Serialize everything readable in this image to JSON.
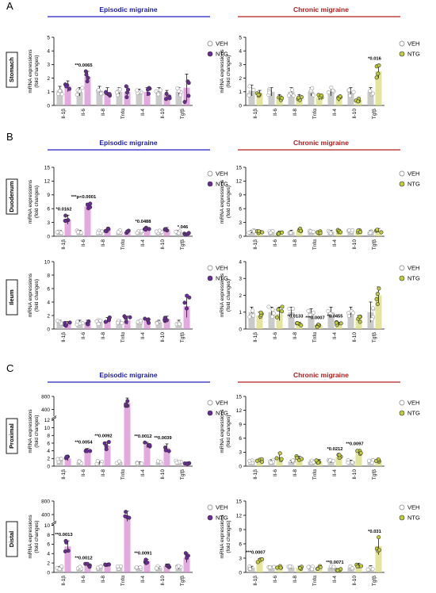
{
  "panels": [
    {
      "letter": "A",
      "ep_title": "Episodic migraine",
      "ch_title": "Chronic migraine",
      "organs": [
        "Stomach"
      ]
    },
    {
      "letter": "B",
      "ep_title": "Episodic migraine",
      "ch_title": "Chronic migraine",
      "organs": [
        "Duodenum",
        "Ileum"
      ]
    },
    {
      "letter": "C",
      "ep_title": "Episodic migraine",
      "ch_title": "Chronic migraine",
      "organs": [
        "Proximal",
        "Distal"
      ]
    }
  ],
  "legend": {
    "veh": "VEH",
    "ntg": "NTG"
  },
  "colors": {
    "veh": "#b8b8b8",
    "ntg_episodic": "#d88ed4",
    "ntg_chronic": "#d8dc7a",
    "dot_ntg_episodic": "#6a2a9a",
    "dot_ntg_chronic": "#c2cc3a",
    "dot_veh": "#9a9a9a"
  },
  "chart_data": [
    {
      "type": "bar",
      "organ": "Stomach",
      "group": "Episodic",
      "ylabel": "mRNA expressions (fold changes)",
      "categories": [
        "Il-1β",
        "Il-6",
        "Il-8",
        "Tnfα",
        "Il-4",
        "Il-10",
        "Tgfβ"
      ],
      "ylim": [
        0,
        5
      ],
      "yticks": [
        0,
        1,
        2,
        3,
        4,
        5
      ],
      "series": [
        {
          "name": "VEH",
          "values": [
            1.1,
            1.0,
            1.1,
            1.0,
            1.0,
            1.0,
            1.0
          ],
          "err": [
            0.3,
            0.3,
            0.3,
            0.3,
            0.2,
            0.3,
            0.3
          ]
        },
        {
          "name": "NTG",
          "values": [
            1.4,
            2.1,
            1.0,
            1.0,
            1.0,
            0.8,
            1.3
          ],
          "err": [
            0.4,
            0.4,
            0.3,
            0.4,
            0.3,
            0.3,
            1.0
          ]
        }
      ],
      "annotations": [
        {
          "category": "Il-6",
          "text": "**0.0065"
        }
      ]
    },
    {
      "type": "bar",
      "organ": "Stomach",
      "group": "Chronic",
      "ylabel": "mRNA expressions (fold changes)",
      "categories": [
        "Il-1β",
        "Il-6",
        "Il-8",
        "Tnfα",
        "Il-4",
        "Il-10",
        "Tgfβ"
      ],
      "ylim": [
        0,
        5
      ],
      "yticks": [
        0,
        1,
        2,
        3,
        4,
        5
      ],
      "series": [
        {
          "name": "VEH",
          "values": [
            1.1,
            1.0,
            1.0,
            1.0,
            1.0,
            1.0,
            1.0
          ],
          "err": [
            0.4,
            0.3,
            0.3,
            0.3,
            0.3,
            0.3,
            0.3
          ]
        },
        {
          "name": "NTG",
          "values": [
            0.9,
            0.6,
            0.6,
            0.6,
            0.5,
            0.4,
            2.5
          ],
          "err": [
            0.2,
            0.2,
            0.2,
            0.2,
            0.2,
            0.1,
            0.5
          ]
        }
      ],
      "annotations": [
        {
          "category": "Tgfβ",
          "text": "*0.016"
        }
      ]
    },
    {
      "type": "bar",
      "organ": "Duodenum",
      "group": "Episodic",
      "ylabel": "mRNA expressions (fold changes)",
      "categories": [
        "Il-1β",
        "Il-6",
        "Il-8",
        "Tnfα",
        "Il-4",
        "Il-10",
        "Tgfβ"
      ],
      "ylim": [
        0,
        15
      ],
      "yticks": [
        0,
        3,
        6,
        9,
        12,
        15
      ],
      "series": [
        {
          "name": "VEH",
          "values": [
            1.0,
            1.0,
            1.0,
            1.0,
            1.0,
            1.0,
            1.0
          ],
          "err": [
            0.3,
            0.3,
            0.3,
            0.3,
            0.3,
            0.3,
            0.3
          ]
        },
        {
          "name": "NTG",
          "values": [
            3.6,
            6.5,
            1.3,
            1.0,
            1.6,
            1.5,
            0.5
          ],
          "err": [
            1.0,
            0.7,
            0.4,
            0.3,
            0.3,
            0.4,
            0.2
          ]
        }
      ],
      "annotations": [
        {
          "category": "Il-1β",
          "text": "*0.0162"
        },
        {
          "category": "Il-6",
          "text": "***p<0.0001"
        },
        {
          "category": "Il-4",
          "text": "*0.0488"
        },
        {
          "category": "Tgfβ",
          "text": "*.046"
        }
      ]
    },
    {
      "type": "bar",
      "organ": "Duodenum",
      "group": "Chronic",
      "ylabel": "mRNA expressions (fold changes)",
      "categories": [
        "Il-1β",
        "Il-6",
        "Il-8",
        "Tnfα",
        "Il-4",
        "Il-10",
        "Tgfβ"
      ],
      "ylim": [
        0,
        15
      ],
      "yticks": [
        0,
        3,
        6,
        9,
        12,
        15
      ],
      "series": [
        {
          "name": "VEH",
          "values": [
            1.0,
            1.0,
            1.0,
            1.0,
            1.0,
            1.0,
            1.0
          ],
          "err": [
            0.3,
            0.3,
            0.3,
            0.3,
            0.3,
            0.3,
            0.3
          ]
        },
        {
          "name": "NTG",
          "values": [
            1.0,
            0.8,
            1.3,
            0.9,
            1.2,
            1.0,
            1.3
          ],
          "err": [
            0.3,
            0.3,
            0.4,
            0.3,
            0.3,
            0.3,
            0.4
          ]
        }
      ],
      "annotations": []
    },
    {
      "type": "bar",
      "organ": "Ileum",
      "group": "Episodic",
      "ylabel": "mRNA expressions (fold changes)",
      "categories": [
        "Il-1β",
        "Il-6",
        "Il-8",
        "Tnfα",
        "Il-4",
        "Il-10",
        "Tgfβ"
      ],
      "ylim": [
        0,
        10
      ],
      "yticks": [
        0,
        2,
        4,
        6,
        8,
        10
      ],
      "series": [
        {
          "name": "VEH",
          "values": [
            1.0,
            1.0,
            1.0,
            1.0,
            1.0,
            1.0,
            1.0
          ],
          "err": [
            0.3,
            0.3,
            0.3,
            0.3,
            0.3,
            0.3,
            0.3
          ]
        },
        {
          "name": "NTG",
          "values": [
            0.8,
            1.0,
            1.3,
            1.3,
            1.2,
            1.5,
            3.4
          ],
          "err": [
            0.3,
            0.3,
            0.4,
            0.6,
            0.3,
            0.4,
            1.7
          ]
        }
      ],
      "annotations": []
    },
    {
      "type": "bar",
      "organ": "Ileum",
      "group": "Chronic",
      "ylabel": "mRNA expressions (fold changes)",
      "categories": [
        "Il-1β",
        "Il-6",
        "Il-8",
        "Tnfα",
        "Il-4",
        "Il-10",
        "Tgfβ"
      ],
      "ylim": [
        0,
        4
      ],
      "yticks": [
        0,
        1,
        2,
        3,
        4
      ],
      "series": [
        {
          "name": "VEH",
          "values": [
            1.0,
            1.0,
            1.0,
            1.0,
            1.0,
            1.0,
            1.0
          ],
          "err": [
            0.3,
            0.3,
            0.3,
            0.2,
            0.3,
            0.3,
            0.6
          ]
        },
        {
          "name": "NTG",
          "values": [
            0.8,
            0.9,
            0.3,
            0.2,
            0.3,
            0.6,
            2.0
          ],
          "err": [
            0.2,
            0.4,
            0.1,
            0.1,
            0.1,
            0.2,
            0.5
          ]
        }
      ],
      "annotations": [
        {
          "category": "Il-8",
          "text": "*0.0133"
        },
        {
          "category": "Tnfα",
          "text": "***0.0007"
        },
        {
          "category": "Il-4",
          "text": "*0.0455"
        }
      ]
    },
    {
      "type": "bar",
      "organ": "Proximal",
      "group": "Episodic",
      "ylabel": "mRNA expressions (fold changes)",
      "categories": [
        "Il-1β",
        "Il-6",
        "Il-8",
        "Tnfα",
        "Il-4",
        "Il-10",
        "Tgfβ"
      ],
      "ylim": [
        0,
        800
      ],
      "axis_break": [
        12,
        200
      ],
      "yticks": [
        0,
        2,
        4,
        6,
        8,
        10,
        12,
        400,
        800
      ],
      "series": [
        {
          "name": "VEH",
          "values": [
            1.6,
            1.0,
            0.9,
            1.0,
            0.8,
            1.0,
            1.1
          ],
          "err": [
            0.6,
            0.3,
            0.4,
            0.4,
            0.3,
            0.3,
            0.3
          ]
        },
        {
          "name": "NTG",
          "values": [
            2.0,
            4.0,
            5.3,
            600,
            5.5,
            4.8,
            0.7
          ],
          "err": [
            0.6,
            0.6,
            1.0,
            150,
            0.7,
            1.0,
            0.2
          ]
        }
      ],
      "annotations": [
        {
          "category": "Il-6",
          "text": "**0.0054"
        },
        {
          "category": "Il-8",
          "text": "**0.0092"
        },
        {
          "category": "Il-4",
          "text": "**0.0012"
        },
        {
          "category": "Il-10",
          "text": "**0.0039"
        }
      ]
    },
    {
      "type": "bar",
      "organ": "Proximal",
      "group": "Chronic",
      "ylabel": "mRNA expressions (fold changes)",
      "categories": [
        "Il-1β",
        "Il-6",
        "Il-8",
        "Tnfα",
        "Il-4",
        "Il-10",
        "Tgfβ"
      ],
      "ylim": [
        0,
        15
      ],
      "yticks": [
        0,
        3,
        6,
        9,
        12,
        15
      ],
      "series": [
        {
          "name": "VEH",
          "values": [
            1.0,
            1.0,
            1.0,
            1.0,
            1.0,
            1.0,
            1.0
          ],
          "err": [
            0.3,
            0.4,
            0.3,
            0.3,
            0.3,
            0.3,
            0.3
          ]
        },
        {
          "name": "NTG",
          "values": [
            1.2,
            2.0,
            1.6,
            1.1,
            2.0,
            3.0,
            1.2
          ],
          "err": [
            0.3,
            0.9,
            0.5,
            0.3,
            0.4,
            0.5,
            0.3
          ]
        }
      ],
      "annotations": [
        {
          "category": "Il-4",
          "text": "*0.0212"
        },
        {
          "category": "Il-10",
          "text": "**0.0097"
        }
      ]
    },
    {
      "type": "bar",
      "organ": "Distal",
      "group": "Episodic",
      "ylabel": "mRNA expressions (fold changes)",
      "categories": [
        "Il-1β",
        "Il-6",
        "Il-8",
        "Tnfα",
        "Il-4",
        "Il-10",
        "Tgfβ"
      ],
      "ylim": [
        0,
        800
      ],
      "axis_break": [
        10,
        200
      ],
      "yticks": [
        0,
        2,
        4,
        6,
        8,
        10,
        400,
        800
      ],
      "series": [
        {
          "name": "VEH",
          "values": [
            1.0,
            1.0,
            1.0,
            1.0,
            1.0,
            1.0,
            1.0
          ],
          "err": [
            0.3,
            0.3,
            0.3,
            0.3,
            0.3,
            0.3,
            0.3
          ]
        },
        {
          "name": "NTG",
          "values": [
            5.5,
            1.5,
            1.5,
            350,
            2.4,
            1.4,
            3.1
          ],
          "err": [
            1.2,
            0.3,
            0.3,
            150,
            0.4,
            0.4,
            1.0
          ]
        }
      ],
      "annotations": [
        {
          "category": "Il-1β",
          "text": "**0.0013"
        },
        {
          "category": "Il-6",
          "text": "**0.0012"
        },
        {
          "category": "Il-4",
          "text": "**0.0091"
        }
      ]
    },
    {
      "type": "bar",
      "organ": "Distal",
      "group": "Chronic",
      "ylabel": "mRNA expressions (fold changes)",
      "categories": [
        "Il-1β",
        "Il-6",
        "Il-8",
        "Tnfα",
        "Il-4",
        "Il-10",
        "Tgfβ"
      ],
      "ylim": [
        0,
        15
      ],
      "yticks": [
        0,
        3,
        6,
        9,
        12,
        15
      ],
      "series": [
        {
          "name": "VEH",
          "values": [
            1.0,
            1.0,
            1.0,
            1.0,
            1.0,
            1.0,
            1.0
          ],
          "err": [
            0.3,
            0.3,
            0.3,
            0.3,
            0.3,
            0.3,
            0.4
          ]
        },
        {
          "name": "NTG",
          "values": [
            2.5,
            1.0,
            1.0,
            1.0,
            0.6,
            1.5,
            5.5
          ],
          "err": [
            0.4,
            0.3,
            0.3,
            0.3,
            0.2,
            0.4,
            1.8
          ]
        }
      ],
      "annotations": [
        {
          "category": "Il-1β",
          "text": "***0.0007"
        },
        {
          "category": "Il-4",
          "text": "**0.0071"
        },
        {
          "category": "Tgfβ",
          "text": "*0.031"
        }
      ]
    }
  ]
}
